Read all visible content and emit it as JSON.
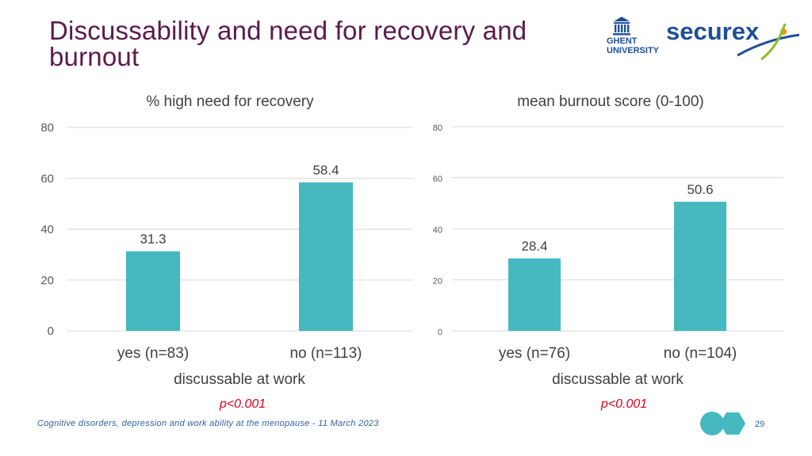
{
  "slide": {
    "title": "Discussability and need for recovery and burnout",
    "footer": "Cognitive disorders, depression and work ability at the menopause - 11 March 2023",
    "page_number": "29",
    "logos": {
      "ghent": "GHENT\nUNIVERSITY",
      "securex": "securex"
    }
  },
  "colors": {
    "bar": "#45b8c0",
    "title": "#5b1a4a",
    "pvalue": "#e0001b",
    "footer": "#2e5fa8"
  },
  "chart_data": [
    {
      "type": "bar",
      "title": "% high need for recovery",
      "categories": [
        "yes (n=83)",
        "no (n=113)"
      ],
      "values": [
        31.3,
        58.4
      ],
      "value_labels": [
        "31.3",
        "58.4"
      ],
      "xlabel": "discussable at work",
      "ylabel": "",
      "ylim": [
        0,
        80
      ],
      "yticks": [
        0,
        20,
        40,
        60,
        80
      ],
      "grid": true,
      "annotation": "p<0.001"
    },
    {
      "type": "bar",
      "title": "mean burnout score (0-100)",
      "categories": [
        "yes (n=76)",
        "no (n=104)"
      ],
      "values": [
        28.4,
        50.6
      ],
      "value_labels": [
        "28.4",
        "50.6"
      ],
      "xlabel": "discussable at work",
      "ylabel": "",
      "ylim": [
        0,
        80
      ],
      "yticks": [
        0,
        20,
        40,
        60,
        80
      ],
      "grid": true,
      "annotation": "p<0.001"
    }
  ]
}
